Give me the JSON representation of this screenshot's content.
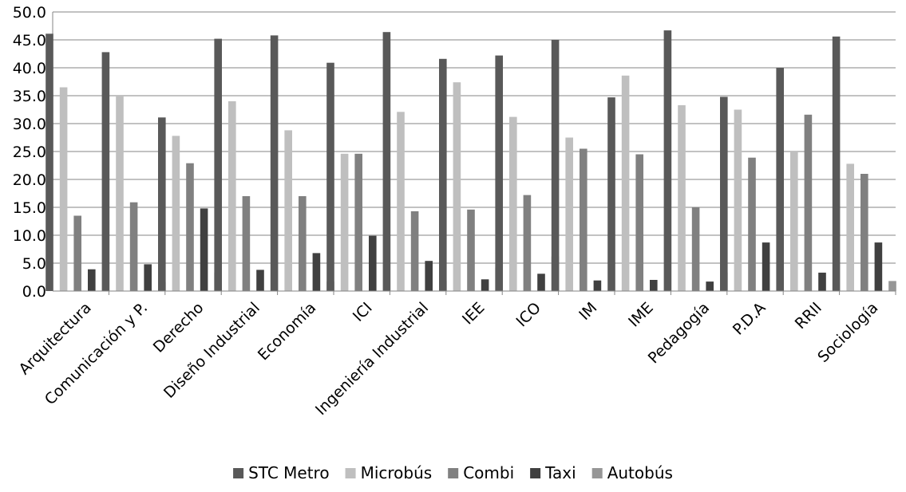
{
  "chart_data": {
    "type": "bar",
    "title": "",
    "xlabel": "",
    "ylabel": "",
    "ylim": [
      0,
      50
    ],
    "y_ticks": [
      "0.0",
      "5.0",
      "10.0",
      "15.0",
      "20.0",
      "25.0",
      "30.0",
      "35.0",
      "40.0",
      "45.0",
      "50.0"
    ],
    "grid": "horizontal",
    "legend_position": "bottom",
    "categories": [
      "Arquitectura",
      "Comunicación y P.",
      "Derecho",
      "Diseño Industrial",
      "Economía",
      "ICI",
      "Ingeniería Industrial",
      "IEE",
      "ICO",
      "IM",
      "IME",
      "Pedagogía",
      "P.D.A",
      "RRII",
      "Sociología"
    ],
    "series": [
      {
        "name": "STC Metro",
        "color": "#595959",
        "values": [
          46.1,
          42.8,
          31.1,
          45.2,
          45.8,
          40.9,
          46.4,
          41.6,
          42.2,
          45.0,
          34.7,
          46.7,
          34.8,
          40.0,
          45.6
        ]
      },
      {
        "name": "Microbús",
        "color": "#bfbfbf",
        "values": [
          36.5,
          35.0,
          27.8,
          34.0,
          28.8,
          24.6,
          32.1,
          37.4,
          31.2,
          27.5,
          38.6,
          33.3,
          32.5,
          25.0,
          22.8
        ]
      },
      {
        "name": "Combi",
        "color": "#808080",
        "values": [
          13.5,
          15.9,
          22.9,
          17.0,
          17.0,
          24.6,
          14.3,
          14.6,
          17.2,
          25.5,
          24.5,
          15.0,
          23.9,
          31.6,
          21.0
        ]
      },
      {
        "name": "Taxi",
        "color": "#404040",
        "values": [
          3.9,
          4.8,
          14.8,
          3.8,
          6.8,
          9.9,
          5.4,
          2.1,
          3.1,
          1.9,
          2.0,
          1.7,
          8.7,
          3.3,
          8.7
        ]
      },
      {
        "name": "Autobús",
        "color": "#969696",
        "values": [
          0.0,
          1.6,
          3.3,
          0.0,
          1.7,
          0.0,
          1.8,
          4.2,
          6.2,
          0.0,
          0.0,
          3.3,
          0.0,
          0.0,
          1.8
        ]
      }
    ]
  }
}
